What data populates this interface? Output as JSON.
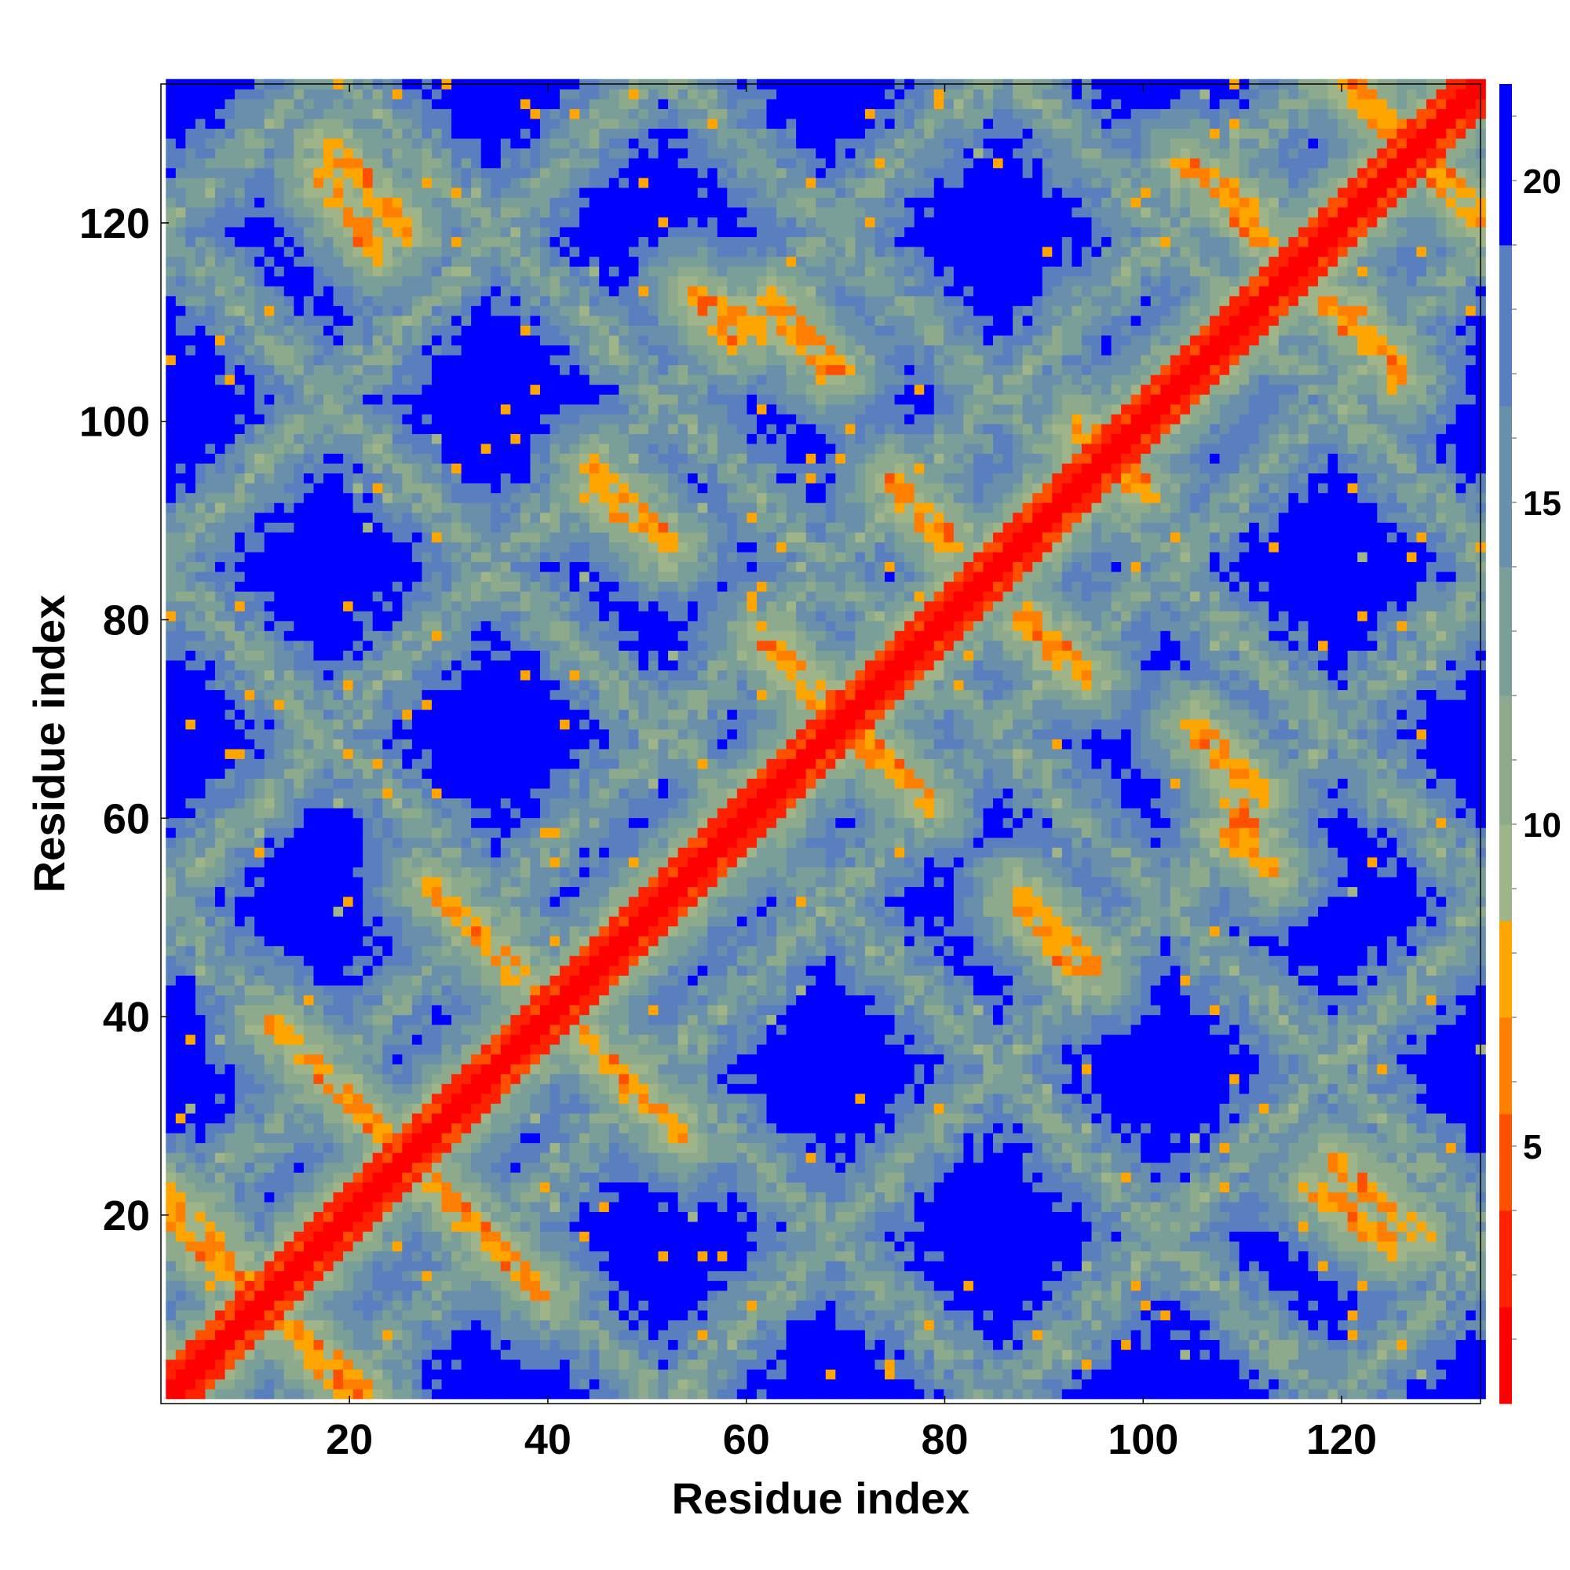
{
  "chart_data": {
    "type": "heatmap",
    "title": "",
    "xlabel": "Residue index",
    "ylabel": "Residue index",
    "n": 134,
    "xlim": [
      1,
      134
    ],
    "ylim": [
      1,
      134
    ],
    "x_ticks": [
      20,
      40,
      60,
      80,
      100,
      120
    ],
    "y_ticks": [
      20,
      40,
      60,
      80,
      100,
      120
    ],
    "colorbar": {
      "ticks": [
        5,
        10,
        15,
        20
      ],
      "range": [
        1,
        21.5
      ],
      "stops": [
        {
          "max": 2.5,
          "color": "#ff0000"
        },
        {
          "max": 4.0,
          "color": "#ff2200"
        },
        {
          "max": 5.5,
          "color": "#ff5000"
        },
        {
          "max": 7.0,
          "color": "#ff8000"
        },
        {
          "max": 8.5,
          "color": "#ffa500"
        },
        {
          "max": 10.0,
          "color": "#9fb589"
        },
        {
          "max": 12.0,
          "color": "#8eaa8c"
        },
        {
          "max": 14.0,
          "color": "#7a9e98"
        },
        {
          "max": 16.5,
          "color": "#6a8fab"
        },
        {
          "max": 19.0,
          "color": "#5a7fbf"
        },
        {
          "max": 21.5,
          "color": "#0000ff"
        }
      ]
    },
    "description_values": {
      "diagonal_distance": 1,
      "contact_band_distance": 7,
      "far_distance": 21
    },
    "contact_segments": [
      {
        "x0": 1,
        "y0": 19,
        "x1": 21,
        "y1": 1
      },
      {
        "x0": 11,
        "y0": 39,
        "x1": 25,
        "y1": 25
      },
      {
        "x0": 25,
        "y0": 25,
        "x1": 39,
        "y1": 11
      },
      {
        "x0": 27,
        "y0": 53,
        "x1": 41,
        "y1": 39
      },
      {
        "x0": 39,
        "y0": 41,
        "x1": 53,
        "y1": 27
      },
      {
        "x0": 44,
        "y0": 95,
        "x1": 52,
        "y1": 87
      },
      {
        "x0": 17,
        "y0": 128,
        "x1": 25,
        "y1": 119
      },
      {
        "x0": 55,
        "y0": 112,
        "x1": 61,
        "y1": 109
      },
      {
        "x0": 63,
        "y0": 110,
        "x1": 68,
        "y1": 105
      },
      {
        "x0": 61,
        "y0": 78,
        "x1": 68,
        "y1": 70
      },
      {
        "x0": 70,
        "y0": 69,
        "x1": 78,
        "y1": 61
      },
      {
        "x0": 75,
        "y0": 92,
        "x1": 80,
        "y1": 87
      },
      {
        "x0": 88,
        "y0": 80,
        "x1": 94,
        "y1": 74
      },
      {
        "x0": 87,
        "y0": 51,
        "x1": 93,
        "y1": 44
      },
      {
        "x0": 93,
        "y0": 99,
        "x1": 100,
        "y1": 93
      },
      {
        "x0": 105,
        "y0": 69,
        "x1": 112,
        "y1": 62
      },
      {
        "x0": 108,
        "y0": 58,
        "x1": 113,
        "y1": 54
      },
      {
        "x0": 106,
        "y0": 125,
        "x1": 112,
        "y1": 118
      },
      {
        "x0": 121,
        "y0": 111,
        "x1": 126,
        "y1": 104
      },
      {
        "x0": 117,
        "y0": 22,
        "x1": 125,
        "y1": 16
      },
      {
        "x0": 121,
        "y0": 134,
        "x1": 134,
        "y1": 120
      }
    ]
  }
}
